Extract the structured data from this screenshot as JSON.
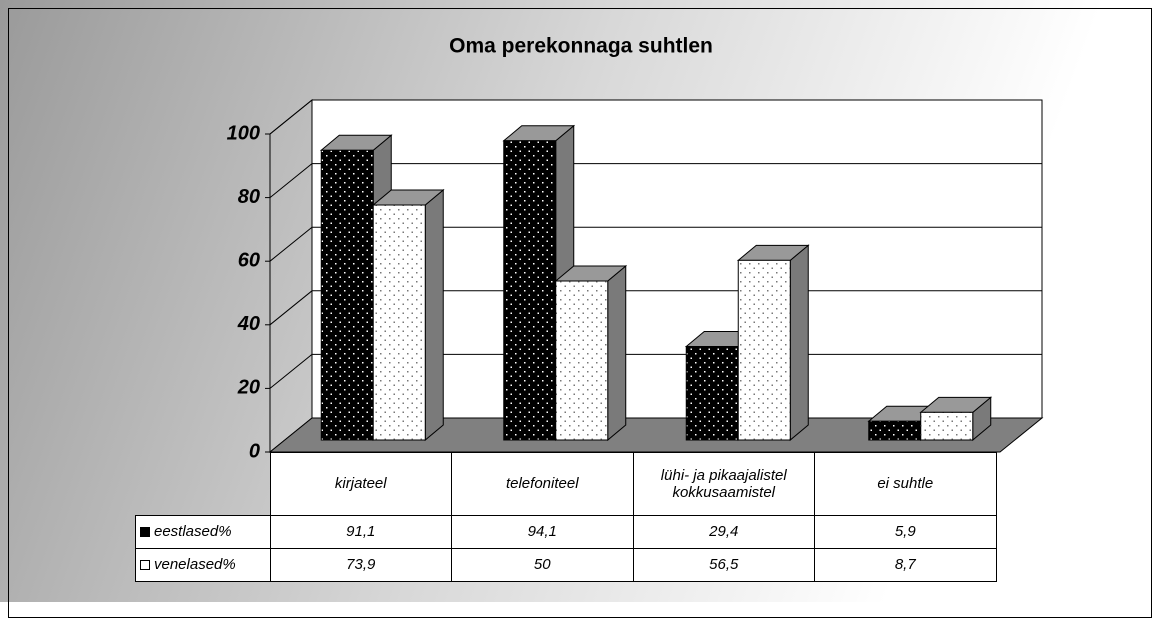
{
  "chart_data": {
    "type": "bar",
    "title": "Oma perekonnaga suhtlen",
    "categories": [
      "kirjateel",
      "telefoniteel",
      "lühi- ja pikaajalistel kokkusaamistel",
      "ei suhtle"
    ],
    "series": [
      {
        "name": "eestlased%",
        "color": "#000000",
        "values": [
          91.1,
          94.1,
          29.4,
          5.9
        ],
        "value_labels": [
          "91,1",
          "94,1",
          "29,4",
          "5,9"
        ]
      },
      {
        "name": "venelased%",
        "color": "#ffffff",
        "values": [
          73.9,
          50,
          56.5,
          8.7
        ],
        "value_labels": [
          "73,9",
          "50",
          "56,5",
          "8,7"
        ]
      }
    ],
    "ylim": [
      0,
      100
    ],
    "yticks": [
      0,
      20,
      40,
      60,
      80,
      100
    ],
    "grid": true
  }
}
